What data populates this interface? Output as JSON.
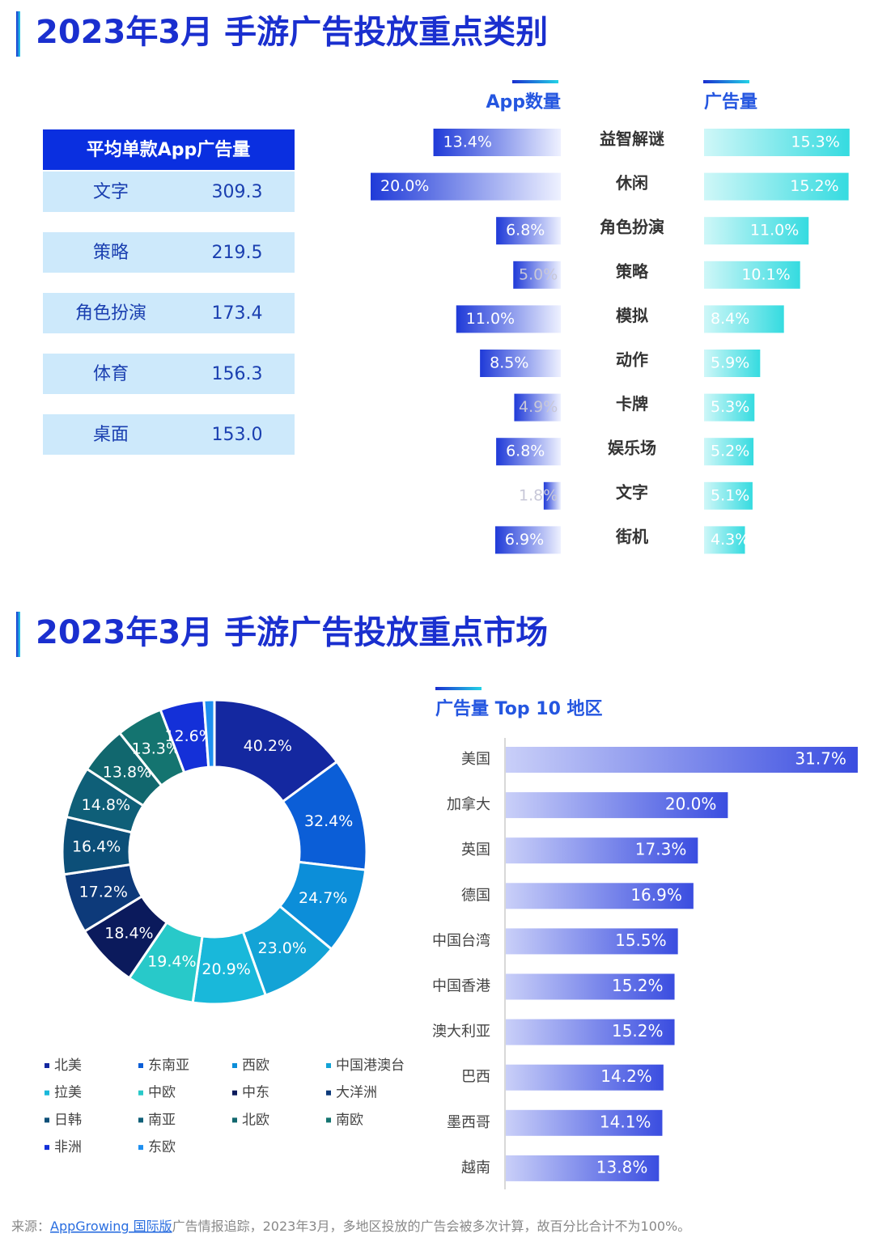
{
  "section1": {
    "title": "2023年3月 手游广告投放重点类别"
  },
  "avg_table": {
    "header": "平均单款App广告量",
    "rows": [
      [
        "文字",
        "309.3"
      ],
      [
        "策略",
        "219.5"
      ],
      [
        "角色扮演",
        "173.4"
      ],
      [
        "体育",
        "156.3"
      ],
      [
        "桌面",
        "153.0"
      ]
    ]
  },
  "section2": {
    "title": "2023年3月 手游广告投放重点市场"
  },
  "chart_data": [
    {
      "type": "butterfly",
      "categories": [
        "益智解谜",
        "休闲",
        "角色扮演",
        "策略",
        "模拟",
        "动作",
        "卡牌",
        "娱乐场",
        "文字",
        "街机"
      ],
      "series": [
        {
          "name": "App数量",
          "color": "#1f3ad8",
          "values": [
            13.4,
            20.0,
            6.8,
            5.0,
            11.0,
            8.5,
            4.9,
            6.8,
            1.8,
            6.9
          ],
          "value_labels": [
            "13.4%",
            "20.0%",
            "6.8%",
            "5.0%",
            "11.0%",
            "8.5%",
            "4.9%",
            "6.8%",
            "1.8%",
            "6.9%"
          ]
        },
        {
          "name": "广告量",
          "color": "#35dbe0",
          "values": [
            15.3,
            15.2,
            11.0,
            10.1,
            8.4,
            5.9,
            5.3,
            5.2,
            5.1,
            4.3
          ],
          "value_labels": [
            "15.3%",
            "15.2%",
            "11.0%",
            "10.1%",
            "8.4%",
            "5.9%",
            "5.3%",
            "5.2%",
            "5.1%",
            "4.3%"
          ]
        }
      ]
    },
    {
      "type": "donut",
      "categories": [
        "北美",
        "东南亚",
        "西欧",
        "中国港澳台",
        "拉美",
        "中欧",
        "中东",
        "大洋洲",
        "日韩",
        "南亚",
        "北欧",
        "南欧",
        "非洲",
        "东欧"
      ],
      "colors": [
        "#1428a0",
        "#0b5ed7",
        "#0c8ed9",
        "#13a3d6",
        "#19b8da",
        "#28c9c9",
        "#0b1a5c",
        "#0d3a7a",
        "#0c4f78",
        "#0f5f78",
        "#11676e",
        "#147470",
        "#1430d8",
        "#1e8ff0"
      ],
      "values": [
        40.2,
        32.4,
        24.7,
        23.0,
        20.9,
        19.4,
        18.4,
        17.2,
        16.4,
        14.8,
        13.8,
        13.3,
        12.6,
        3.0
      ],
      "value_labels": [
        "40.2%",
        "32.4%",
        "24.7%",
        "23.0%",
        "20.9%",
        "19.4%",
        "18.4%",
        "17.2%",
        "16.4%",
        "14.8%",
        "13.8%",
        "13.3%",
        "12.6%",
        null
      ]
    },
    {
      "type": "bar",
      "title": "广告量 Top 10 地区",
      "color": "#3a4de0",
      "categories": [
        "美国",
        "加拿大",
        "英国",
        "德国",
        "中国台湾",
        "中国香港",
        "澳大利亚",
        "巴西",
        "墨西哥",
        "越南"
      ],
      "values": [
        31.7,
        20.0,
        17.3,
        16.9,
        15.5,
        15.2,
        15.2,
        14.2,
        14.1,
        13.8
      ],
      "value_labels": [
        "31.7%",
        "20.0%",
        "17.3%",
        "16.9%",
        "15.5%",
        "15.2%",
        "15.2%",
        "14.2%",
        "14.1%",
        "13.8%"
      ]
    }
  ],
  "footer": {
    "source_prefix": "来源：",
    "source_link": "AppGrowing 国际版",
    "note": "广告情报追踪，2023年3月，多地区投放的广告会被多次计算，故百分比合计不为100%。"
  }
}
